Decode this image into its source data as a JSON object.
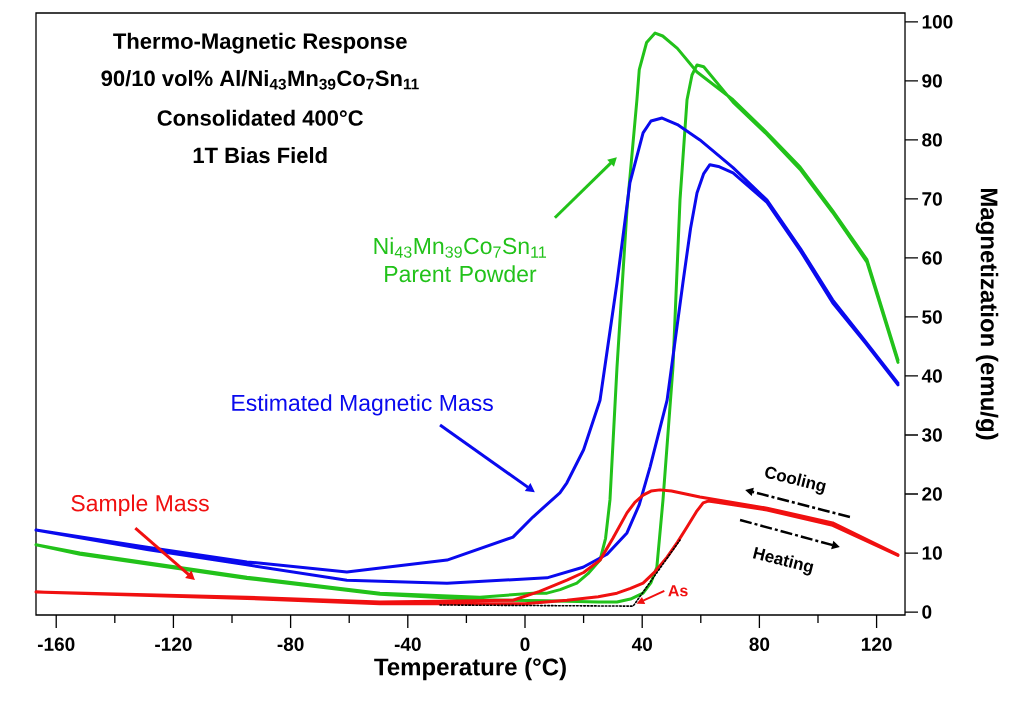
{
  "chart_data": {
    "type": "line",
    "title": "Thermo-Magnetic Response",
    "subtitle": "90/10 vol% Al/Ni$_{43}$Mn$_{39}$Co$_{7}$Sn$_{11}$",
    "xlabel": "Temperature (°C)",
    "ylabel": "Magnetization (emu/g)",
    "xlim": [
      -166.9,
      129.7
    ],
    "ylim": [
      -0.5,
      101.5
    ],
    "xticks": [
      -160,
      {
        "value": -140,
        "label": null
      },
      -120,
      {
        "value": -100,
        "label": null
      },
      -80,
      {
        "value": -60,
        "label": null
      },
      -40,
      {
        "value": -20,
        "label": null
      },
      0,
      {
        "value": 20,
        "label": null
      },
      40,
      {
        "value": 60,
        "label": null
      },
      80,
      {
        "value": 100,
        "label": null
      },
      120
    ],
    "yticks": [
      0,
      10,
      20,
      30,
      40,
      50,
      60,
      70,
      80,
      90,
      100
    ],
    "series": [
      {
        "name": "Ni$_{43}$Mn$_{39}$Co$_{7}$Sn$_{11}$ Parent Powder",
        "color": "#22c21a",
        "x": [
          127.3,
          116.7,
          105,
          93.9,
          82,
          71,
          58.7,
          52,
          47,
          44.4,
          41.5,
          39,
          38.2,
          34.8,
          31.4,
          29,
          27.5,
          25.6,
          21.5,
          17.7,
          12,
          7.5,
          2.7,
          -15.4,
          -49.5,
          -94.9,
          -151.9,
          -166.9,
          -151.9,
          -94.9,
          -49.5,
          -15.4,
          7.5,
          25,
          31.4,
          36,
          40.3,
          43,
          45,
          47.1,
          50.5,
          52.9,
          55.3,
          57,
          58.7,
          61,
          71,
          82,
          93.9,
          105,
          116.7,
          127.3
        ],
        "values": [
          42.7,
          59.7,
          68,
          75.4,
          81.5,
          86.8,
          91.5,
          95.5,
          97.6,
          98.1,
          96.5,
          91.9,
          86.8,
          68.1,
          41.5,
          19,
          12.5,
          8.8,
          6.5,
          4.9,
          3.8,
          3.2,
          3.2,
          2.5,
          3.2,
          5.9,
          10,
          11.4,
          9.8,
          5.7,
          3,
          2.1,
          1.9,
          1.7,
          1.7,
          2.2,
          3.2,
          5,
          7.6,
          19,
          41.5,
          69.8,
          86.8,
          91,
          92.7,
          92.4,
          86.4,
          81.2,
          75,
          67.7,
          59.3,
          42.3
        ]
      },
      {
        "name": "Estimated Magnetic Mass",
        "color": "#0a0aee",
        "x": [
          127.3,
          116,
          105,
          94,
          82.6,
          71,
          59.7,
          52,
          46.8,
          43,
          40.3,
          35.8,
          31.4,
          25.6,
          20,
          14.3,
          11.9,
          2.7,
          -4.1,
          -26.6,
          -60.8,
          -94.9,
          -129,
          -166.9,
          -129,
          -94.9,
          -60.8,
          -26.6,
          7.5,
          19.8,
          28,
          34.8,
          39,
          42.7,
          48.5,
          53.9,
          56.5,
          58.7,
          61,
          63.1,
          66,
          71,
          82.6,
          94,
          105,
          116,
          127.3
        ],
        "values": [
          38.8,
          46,
          52.9,
          61.6,
          69.8,
          75.3,
          80,
          82.6,
          83.7,
          83.2,
          81.2,
          72.7,
          55.8,
          35.9,
          27.5,
          21.9,
          20.2,
          16.1,
          12.7,
          8.8,
          6.8,
          8.5,
          11,
          13.9,
          10.6,
          8,
          5.4,
          4.9,
          5.8,
          7.6,
          9.8,
          13.4,
          18.2,
          24.6,
          35.9,
          55.8,
          65,
          71,
          74.3,
          75.8,
          75.5,
          74.4,
          69.4,
          61.2,
          52.4,
          45.7,
          38.5
        ]
      },
      {
        "name": "Sample Mass",
        "color": "#f01010",
        "x": [
          127.3,
          105,
          82.6,
          59.7,
          50,
          46.1,
          43,
          40.3,
          37.5,
          34.8,
          30,
          25.6,
          20,
          14.3,
          5,
          -4.1,
          -49.5,
          -94.9,
          -166.9,
          -94.9,
          -49.5,
          0,
          14.3,
          25,
          31.4,
          36,
          40.3,
          44.5,
          48.5,
          52,
          55.3,
          58.5,
          60.8,
          62.5,
          65.5,
          82.6,
          105,
          127.3
        ],
        "values": [
          9.7,
          15.1,
          17.6,
          19.5,
          20.5,
          20.7,
          20.5,
          19.8,
          18.6,
          16.8,
          12.5,
          8.8,
          6.7,
          5.4,
          3.5,
          2,
          1.7,
          2.5,
          3.4,
          2.3,
          1.4,
          1.4,
          2,
          2.6,
          3.2,
          4,
          4.9,
          6.9,
          9.3,
          11.8,
          14.4,
          17,
          18.5,
          18.8,
          18.6,
          17.3,
          14.7,
          9.6
        ]
      },
      {
        "color": "#000000",
        "line_style": "dotted",
        "x": [
          -29,
          36.9,
          52.9
        ],
        "values": [
          1.2,
          1.0,
          12.2
        ]
      }
    ],
    "annotations": [
      "Consolidated 400°C",
      "1T Bias Field",
      "Cooling",
      "Heating",
      {
        "text": "As",
        "x": 38,
        "y": 1.4
      }
    ]
  }
}
